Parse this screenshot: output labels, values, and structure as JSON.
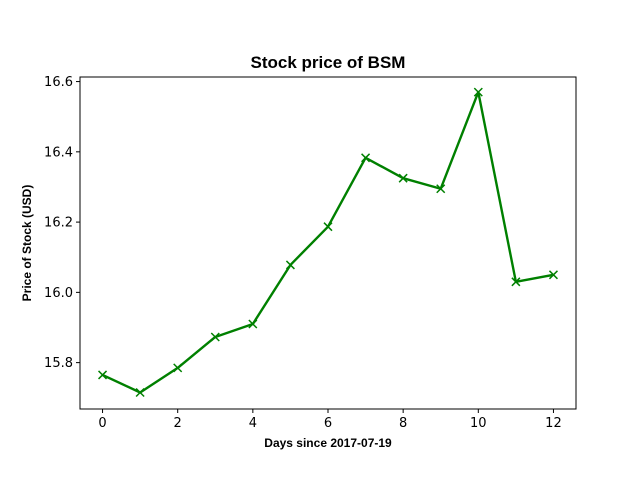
{
  "chart_data": {
    "type": "line",
    "title": "Stock price of BSM",
    "xlabel": "Days since 2017-07-19",
    "ylabel": "Price of Stock (USD)",
    "x": [
      0,
      1,
      2,
      3,
      4,
      5,
      6,
      7,
      8,
      9,
      10,
      11,
      12
    ],
    "series": [
      {
        "values": [
          15.765,
          15.715,
          15.785,
          15.873,
          15.91,
          16.078,
          16.187,
          16.383,
          16.325,
          16.295,
          16.57,
          16.03,
          16.05
        ],
        "color": "#008000",
        "marker": "x"
      }
    ],
    "xlim": [
      -0.6,
      12.6
    ],
    "ylim": [
      15.668,
      16.613
    ],
    "xticks": [
      0,
      2,
      4,
      6,
      8,
      10,
      12
    ],
    "yticks": [
      15.8,
      16.0,
      16.2,
      16.4,
      16.6
    ],
    "xtick_labels": [
      "0",
      "2",
      "4",
      "6",
      "8",
      "10",
      "12"
    ],
    "ytick_labels": [
      "15.8",
      "16.0",
      "16.2",
      "16.4",
      "16.6"
    ],
    "grid": false,
    "legend": "none"
  }
}
